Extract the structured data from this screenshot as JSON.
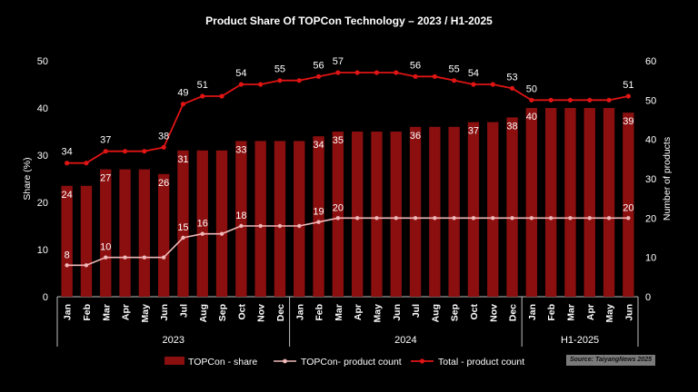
{
  "chart_data": {
    "type": "bar",
    "title": "Product Share Of TOPCon Technology – 2023 / H1-2025",
    "ylabel": "Share (%)",
    "y2label": "Number of products",
    "ylim": [
      0,
      50
    ],
    "y2lim": [
      0,
      60
    ],
    "yticks": [
      "0",
      "10",
      "20",
      "30",
      "40",
      "50"
    ],
    "y2ticks": [
      "0",
      "10",
      "20",
      "30",
      "40",
      "50",
      "60"
    ],
    "categories": [
      "Jan",
      "Feb",
      "Mar",
      "Apr",
      "May",
      "Jun",
      "Jul",
      "Aug",
      "Sep",
      "Oct",
      "Nov",
      "Dec",
      "Jan",
      "Feb",
      "Mar",
      "Apr",
      "May",
      "Jun",
      "Jul",
      "Aug",
      "Sep",
      "Oct",
      "Nov",
      "Dec",
      "Jan",
      "Feb",
      "Mar",
      "Apr",
      "May",
      "Jun"
    ],
    "year_groups": [
      {
        "label": "2023",
        "count": 12
      },
      {
        "label": "2024",
        "count": 12
      },
      {
        "label": "H1-2025",
        "count": 6
      }
    ],
    "series": [
      {
        "name": "TOPCon - share",
        "kind": "bar",
        "axis": "left",
        "color": "#8b0f0f",
        "values": [
          23.5,
          23.5,
          27,
          27,
          27,
          26,
          31,
          31,
          31,
          33,
          33,
          33,
          33,
          34,
          35,
          35,
          35,
          35,
          36,
          36,
          36,
          37,
          37,
          38,
          40,
          40,
          40,
          40,
          40,
          39
        ]
      },
      {
        "name": "TOPCon- product count",
        "kind": "line",
        "axis": "right",
        "color": "#f0b8b8",
        "values": [
          8,
          8,
          10,
          10,
          10,
          10,
          15,
          16,
          16,
          18,
          18,
          18,
          18,
          19,
          20,
          20,
          20,
          20,
          20,
          20,
          20,
          20,
          20,
          20,
          20,
          20,
          20,
          20,
          20,
          20
        ]
      },
      {
        "name": "Total - product count",
        "kind": "line",
        "axis": "right",
        "color": "#e01414",
        "values": [
          34,
          34,
          37,
          37,
          37,
          38,
          49,
          51,
          51,
          54,
          54,
          55,
          55,
          56,
          57,
          57,
          57,
          57,
          56,
          56,
          55,
          54,
          54,
          53,
          50,
          50,
          50,
          50,
          50,
          51
        ]
      }
    ],
    "bar_labels": [
      {
        "i": 0,
        "text": "24"
      },
      {
        "i": 2,
        "text": "27"
      },
      {
        "i": 5,
        "text": "26"
      },
      {
        "i": 6,
        "text": "31"
      },
      {
        "i": 9,
        "text": "33"
      },
      {
        "i": 13,
        "text": "34"
      },
      {
        "i": 14,
        "text": "35"
      },
      {
        "i": 18,
        "text": "36"
      },
      {
        "i": 21,
        "text": "37"
      },
      {
        "i": 23,
        "text": "38"
      },
      {
        "i": 24,
        "text": "40"
      },
      {
        "i": 29,
        "text": "39"
      }
    ],
    "topcon_labels": [
      {
        "i": 0,
        "text": "8"
      },
      {
        "i": 2,
        "text": "10"
      },
      {
        "i": 6,
        "text": "15"
      },
      {
        "i": 7,
        "text": "16"
      },
      {
        "i": 9,
        "text": "18"
      },
      {
        "i": 13,
        "text": "19"
      },
      {
        "i": 14,
        "text": "20"
      },
      {
        "i": 29,
        "text": "20"
      }
    ],
    "total_labels": [
      {
        "i": 0,
        "text": "34"
      },
      {
        "i": 2,
        "text": "37"
      },
      {
        "i": 5,
        "text": "38"
      },
      {
        "i": 6,
        "text": "49"
      },
      {
        "i": 7,
        "text": "51"
      },
      {
        "i": 9,
        "text": "54"
      },
      {
        "i": 11,
        "text": "55"
      },
      {
        "i": 13,
        "text": "56"
      },
      {
        "i": 14,
        "text": "57"
      },
      {
        "i": 18,
        "text": "56"
      },
      {
        "i": 20,
        "text": "55"
      },
      {
        "i": 21,
        "text": "54"
      },
      {
        "i": 23,
        "text": "53"
      },
      {
        "i": 24,
        "text": "50"
      },
      {
        "i": 29,
        "text": "51"
      }
    ],
    "legend_position": "bottom",
    "grid": false
  },
  "source": "Source: TaiyangNews 2025"
}
